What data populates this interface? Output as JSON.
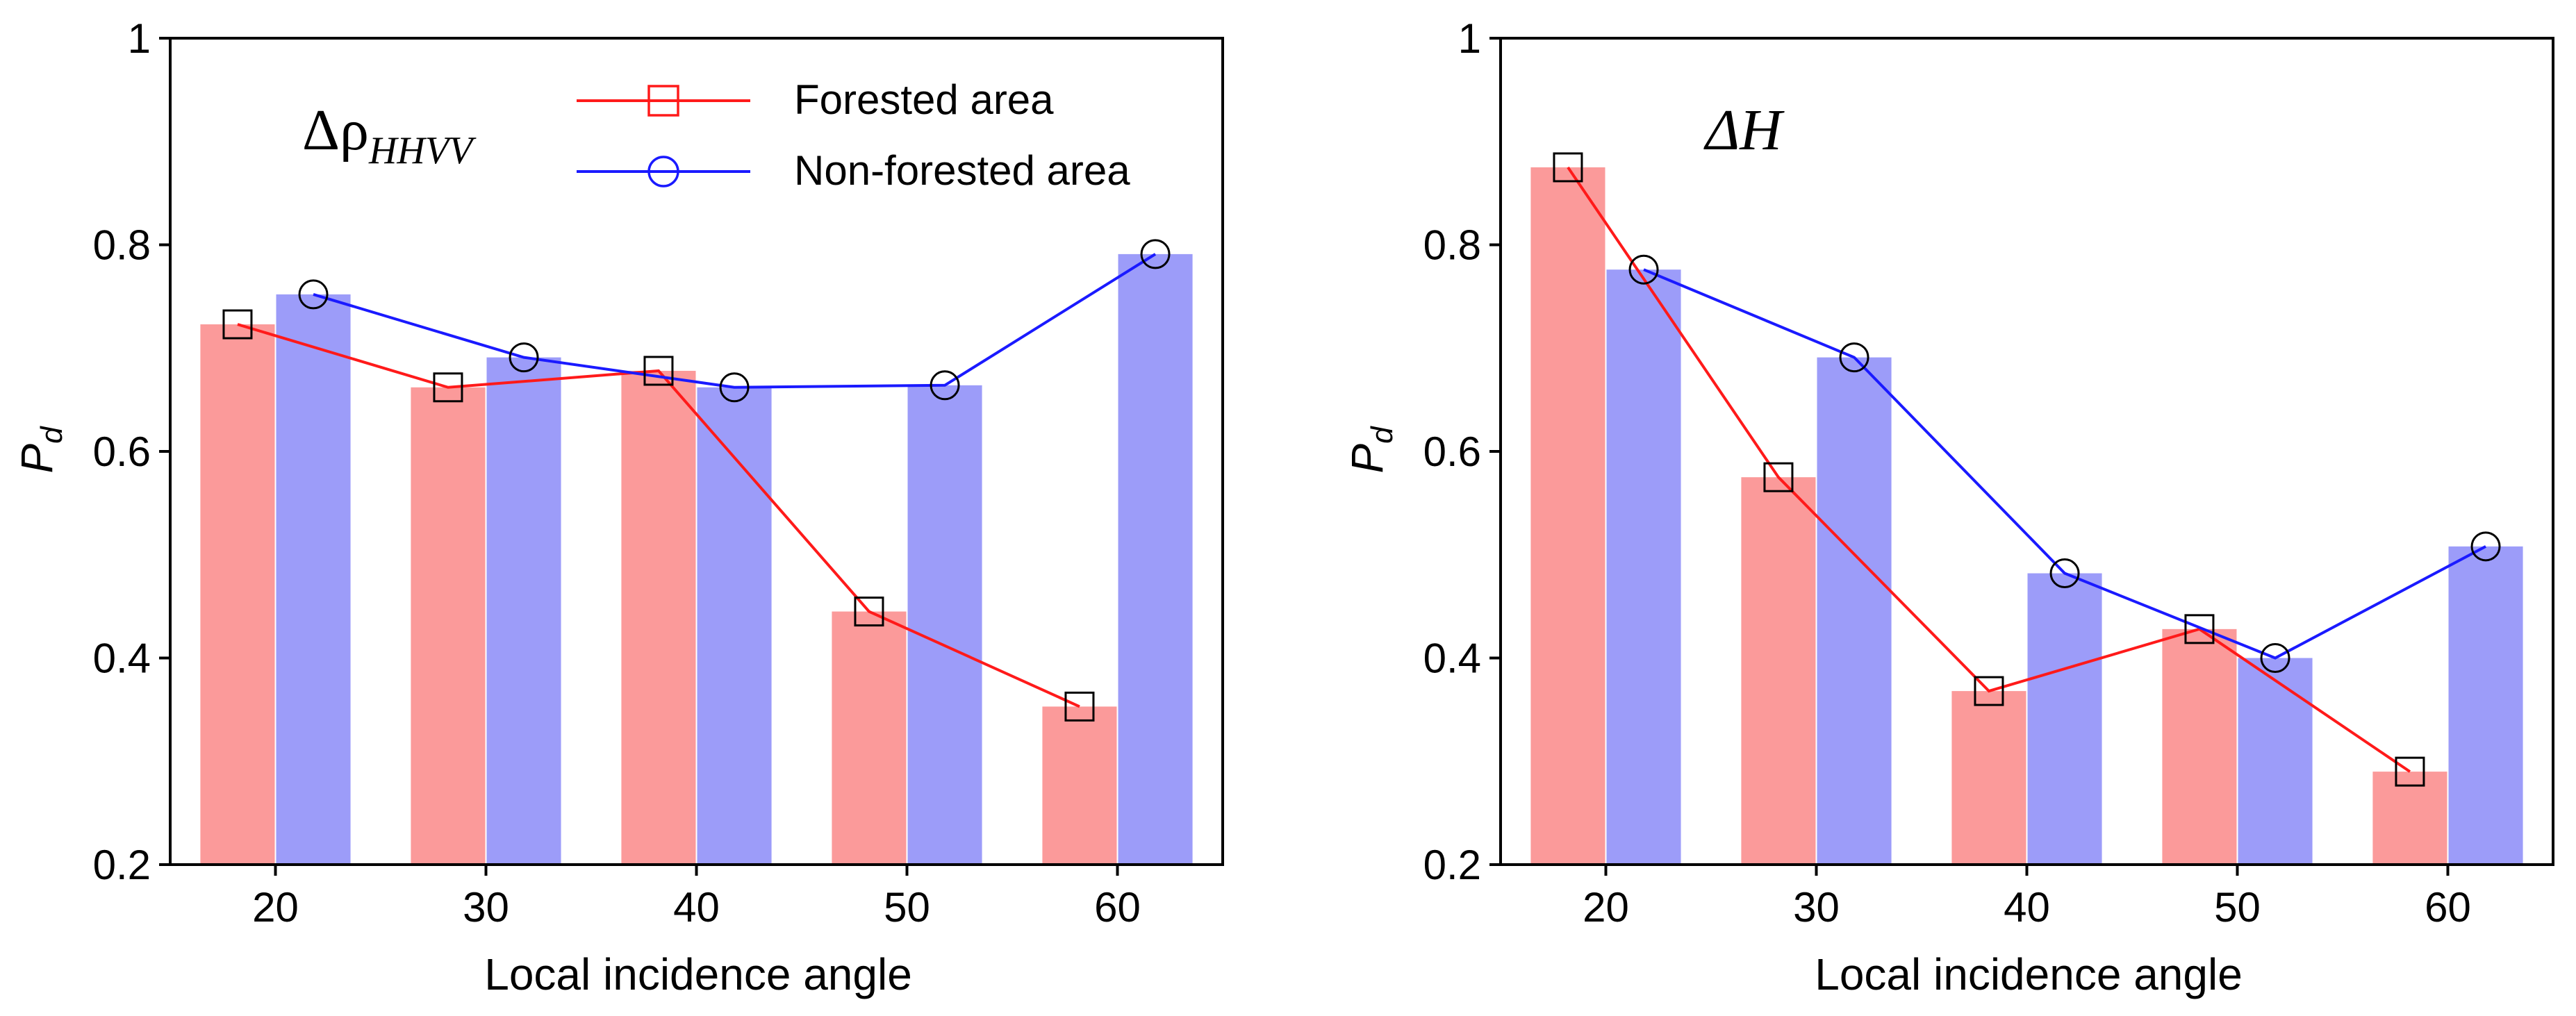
{
  "colors": {
    "forested_bar": "#fb9a9a",
    "nonforested_bar": "#9c9cf9",
    "forested_line": "#ff1a1a",
    "nonforested_line": "#1a1aff",
    "axis": "#000000"
  },
  "legend": {
    "forested": "Forested area",
    "nonforested": "Non-forested area"
  },
  "chart_data": [
    {
      "type": "bar",
      "overlay": "line",
      "annotation": {
        "symbol": "Δρ",
        "subscript": "HHVV"
      },
      "categories": [
        "20",
        "30",
        "40",
        "50",
        "60"
      ],
      "xlabel": "Local incidence angle",
      "ylabel": {
        "main": "P",
        "sub": "d"
      },
      "ylim": [
        0.2,
        1.0
      ],
      "yticks": [
        "0.2",
        "0.4",
        "0.6",
        "0.8",
        "1"
      ],
      "series": [
        {
          "name": "Forested area",
          "values": [
            0.723,
            0.662,
            0.678,
            0.445,
            0.353
          ]
        },
        {
          "name": "Non-forested area",
          "values": [
            0.752,
            0.691,
            0.662,
            0.664,
            0.791
          ]
        }
      ]
    },
    {
      "type": "bar",
      "overlay": "line",
      "annotation": {
        "symbol": "ΔH",
        "subscript": ""
      },
      "categories": [
        "20",
        "30",
        "40",
        "50",
        "60"
      ],
      "xlabel": "Local incidence angle",
      "ylabel": {
        "main": "P",
        "sub": "d"
      },
      "ylim": [
        0.2,
        1.0
      ],
      "yticks": [
        "0.2",
        "0.4",
        "0.6",
        "0.8",
        "1"
      ],
      "series": [
        {
          "name": "Forested area",
          "values": [
            0.875,
            0.575,
            0.368,
            0.428,
            0.29
          ]
        },
        {
          "name": "Non-forested area",
          "values": [
            0.776,
            0.691,
            0.482,
            0.4,
            0.508
          ]
        }
      ]
    }
  ]
}
